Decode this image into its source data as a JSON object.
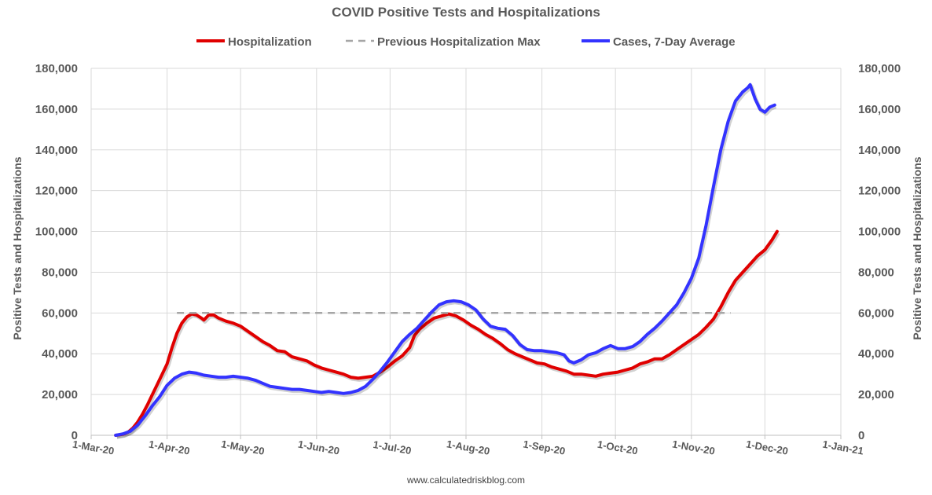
{
  "chart_data": {
    "type": "line",
    "title": "COVID Positive Tests and Hospitalizations",
    "ylabel_left": "Positive Tests and Hospitalizations",
    "ylabel_right": "Positive Tests and Hospitalizations",
    "source": "www.calculatedriskblog.com",
    "ylim": [
      0,
      180000
    ],
    "y_ticks": [
      "0",
      "20,000",
      "40,000",
      "60,000",
      "80,000",
      "100,000",
      "120,000",
      "140,000",
      "160,000",
      "180,000"
    ],
    "y_tick_values": [
      0,
      20000,
      40000,
      60000,
      80000,
      100000,
      120000,
      140000,
      160000,
      180000
    ],
    "x_ticks": [
      "1-Mar-20",
      "1-Apr-20",
      "1-May-20",
      "1-Jun-20",
      "1-Jul-20",
      "1-Aug-20",
      "1-Sep-20",
      "1-Oct-20",
      "1-Nov-20",
      "1-Dec-20",
      "1-Jan-21"
    ],
    "x_tick_days": [
      0,
      31,
      61,
      92,
      122,
      153,
      184,
      214,
      245,
      275,
      306
    ],
    "x_start_date": "2020-03-01",
    "grid": true,
    "legend_position": "top",
    "series": [
      {
        "name": "Hospitalization",
        "color": "#e00000",
        "dash": "solid",
        "points": [
          [
            10,
            0
          ],
          [
            13,
            500
          ],
          [
            15,
            1500
          ],
          [
            17,
            3500
          ],
          [
            19,
            6500
          ],
          [
            21,
            10500
          ],
          [
            23,
            15000
          ],
          [
            25,
            20000
          ],
          [
            27,
            25000
          ],
          [
            29,
            30000
          ],
          [
            31,
            35000
          ],
          [
            33,
            43000
          ],
          [
            35,
            50000
          ],
          [
            37,
            55000
          ],
          [
            39,
            58000
          ],
          [
            41,
            59500
          ],
          [
            43,
            59000
          ],
          [
            45,
            57500
          ],
          [
            46,
            56500
          ],
          [
            48,
            59000
          ],
          [
            50,
            59000
          ],
          [
            52,
            57500
          ],
          [
            55,
            56000
          ],
          [
            58,
            55000
          ],
          [
            61,
            53500
          ],
          [
            64,
            51000
          ],
          [
            67,
            48500
          ],
          [
            70,
            46000
          ],
          [
            73,
            44000
          ],
          [
            76,
            41500
          ],
          [
            79,
            41000
          ],
          [
            82,
            38500
          ],
          [
            85,
            37500
          ],
          [
            88,
            36500
          ],
          [
            91,
            34500
          ],
          [
            94,
            33000
          ],
          [
            97,
            32000
          ],
          [
            100,
            31000
          ],
          [
            103,
            30000
          ],
          [
            106,
            28500
          ],
          [
            109,
            28000
          ],
          [
            112,
            28500
          ],
          [
            115,
            29000
          ],
          [
            118,
            31000
          ],
          [
            121,
            33500
          ],
          [
            124,
            36500
          ],
          [
            127,
            39000
          ],
          [
            130,
            43000
          ],
          [
            132,
            49000
          ],
          [
            134,
            52000
          ],
          [
            137,
            55000
          ],
          [
            140,
            57500
          ],
          [
            143,
            58500
          ],
          [
            146,
            59500
          ],
          [
            149,
            58500
          ],
          [
            152,
            56500
          ],
          [
            155,
            54000
          ],
          [
            158,
            52000
          ],
          [
            161,
            49500
          ],
          [
            164,
            47500
          ],
          [
            167,
            45000
          ],
          [
            170,
            42000
          ],
          [
            173,
            40000
          ],
          [
            176,
            38500
          ],
          [
            179,
            37000
          ],
          [
            182,
            35500
          ],
          [
            185,
            35000
          ],
          [
            188,
            33500
          ],
          [
            191,
            32500
          ],
          [
            194,
            31500
          ],
          [
            197,
            30000
          ],
          [
            200,
            30000
          ],
          [
            203,
            29500
          ],
          [
            206,
            29000
          ],
          [
            209,
            30000
          ],
          [
            212,
            30500
          ],
          [
            215,
            31000
          ],
          [
            218,
            32000
          ],
          [
            221,
            33000
          ],
          [
            224,
            35000
          ],
          [
            227,
            36000
          ],
          [
            230,
            37500
          ],
          [
            233,
            37500
          ],
          [
            236,
            39500
          ],
          [
            239,
            42000
          ],
          [
            242,
            44500
          ],
          [
            245,
            47000
          ],
          [
            248,
            49500
          ],
          [
            251,
            53000
          ],
          [
            254,
            57000
          ],
          [
            257,
            63000
          ],
          [
            260,
            70000
          ],
          [
            263,
            76000
          ],
          [
            266,
            80000
          ],
          [
            269,
            84000
          ],
          [
            272,
            88000
          ],
          [
            275,
            91000
          ],
          [
            278,
            96000
          ],
          [
            280,
            100000
          ]
        ]
      },
      {
        "name": "Previous Hospitalization Max",
        "color": "#a6a6a6",
        "dash": "dashed",
        "points": [
          [
            35,
            60000
          ],
          [
            261,
            60000
          ]
        ]
      },
      {
        "name": "Cases, 7-Day Average",
        "color": "#3333ff",
        "dash": "solid",
        "points": [
          [
            10,
            0
          ],
          [
            13,
            700
          ],
          [
            16,
            2000
          ],
          [
            19,
            5000
          ],
          [
            22,
            9500
          ],
          [
            25,
            14500
          ],
          [
            28,
            19000
          ],
          [
            31,
            24500
          ],
          [
            34,
            28000
          ],
          [
            37,
            30000
          ],
          [
            40,
            31000
          ],
          [
            43,
            30500
          ],
          [
            46,
            29500
          ],
          [
            49,
            29000
          ],
          [
            52,
            28500
          ],
          [
            55,
            28500
          ],
          [
            58,
            29000
          ],
          [
            61,
            28500
          ],
          [
            64,
            28000
          ],
          [
            67,
            27000
          ],
          [
            70,
            25500
          ],
          [
            73,
            24000
          ],
          [
            76,
            23500
          ],
          [
            79,
            23000
          ],
          [
            82,
            22500
          ],
          [
            85,
            22500
          ],
          [
            88,
            22000
          ],
          [
            91,
            21500
          ],
          [
            94,
            21000
          ],
          [
            97,
            21500
          ],
          [
            100,
            21000
          ],
          [
            103,
            20500
          ],
          [
            106,
            21000
          ],
          [
            109,
            22000
          ],
          [
            112,
            24000
          ],
          [
            115,
            27500
          ],
          [
            118,
            31500
          ],
          [
            121,
            36000
          ],
          [
            124,
            41000
          ],
          [
            127,
            46000
          ],
          [
            130,
            49500
          ],
          [
            133,
            52500
          ],
          [
            136,
            56500
          ],
          [
            139,
            60500
          ],
          [
            142,
            64000
          ],
          [
            145,
            65500
          ],
          [
            148,
            66000
          ],
          [
            151,
            65500
          ],
          [
            154,
            64000
          ],
          [
            157,
            61500
          ],
          [
            160,
            57000
          ],
          [
            163,
            53500
          ],
          [
            166,
            52500
          ],
          [
            169,
            52000
          ],
          [
            172,
            49000
          ],
          [
            175,
            44500
          ],
          [
            178,
            42000
          ],
          [
            181,
            41500
          ],
          [
            184,
            41500
          ],
          [
            187,
            41000
          ],
          [
            190,
            40500
          ],
          [
            193,
            39500
          ],
          [
            195,
            36500
          ],
          [
            197,
            35500
          ],
          [
            200,
            37000
          ],
          [
            203,
            39500
          ],
          [
            206,
            40500
          ],
          [
            209,
            42500
          ],
          [
            212,
            44000
          ],
          [
            215,
            42500
          ],
          [
            218,
            42500
          ],
          [
            221,
            43500
          ],
          [
            224,
            46000
          ],
          [
            227,
            49500
          ],
          [
            230,
            52500
          ],
          [
            233,
            56000
          ],
          [
            236,
            60000
          ],
          [
            239,
            64000
          ],
          [
            242,
            70000
          ],
          [
            245,
            77000
          ],
          [
            248,
            87000
          ],
          [
            251,
            103000
          ],
          [
            254,
            122000
          ],
          [
            257,
            140000
          ],
          [
            260,
            154000
          ],
          [
            263,
            164000
          ],
          [
            266,
            168500
          ],
          [
            268,
            170500
          ],
          [
            269,
            172000
          ],
          [
            271,
            165000
          ],
          [
            273,
            160000
          ],
          [
            275,
            158500
          ],
          [
            277,
            161000
          ],
          [
            279,
            162000
          ]
        ]
      }
    ]
  }
}
